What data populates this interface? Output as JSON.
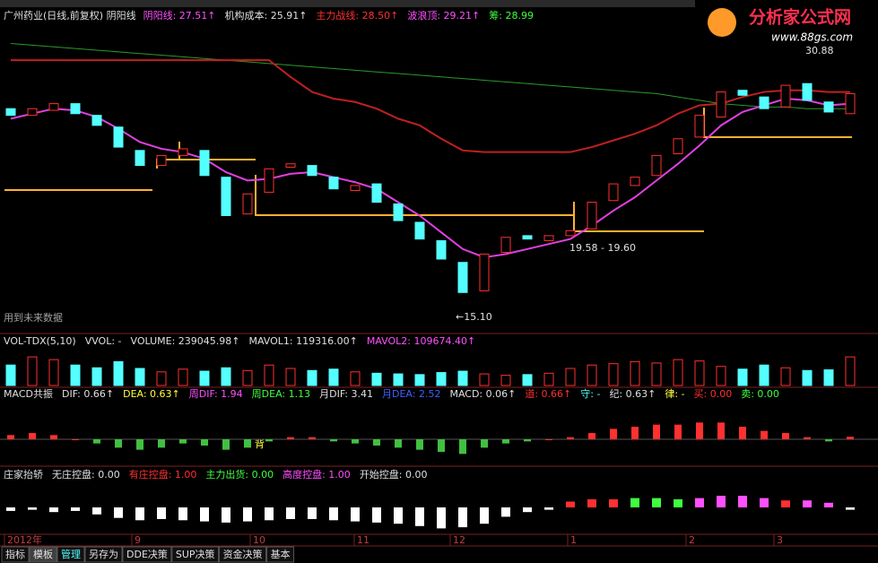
{
  "logo": {
    "name": "分析家公式网",
    "url": "www.88gs.com"
  },
  "price_panel": {
    "title": "广州药业(日线,前复权) 阴阳线",
    "legend": [
      {
        "label": "阴阳线: 27.51↑",
        "color": "#ff50ff"
      },
      {
        "label": "机构成本: 25.91↑",
        "color": "#e0e0e0"
      },
      {
        "label": "主力战线: 28.50↑",
        "color": "#ff3030"
      },
      {
        "label": "波浪顶: 29.21↑",
        "color": "#ff50ff"
      },
      {
        "label": "筹: 28.99",
        "color": "#40ff40"
      }
    ],
    "ylim": [
      14.2,
      32.6
    ],
    "opens": [
      27.6,
      27.2,
      27.5,
      27.9,
      27.2,
      26.5,
      25.1,
      24.2,
      24.8,
      25.1,
      23.5,
      21.3,
      22.6,
      24.1,
      24.2,
      23.5,
      22.7,
      23.1,
      21.9,
      20.8,
      19.7,
      18.4,
      16.7,
      19.0,
      20.0,
      19.7,
      20.0,
      20.4,
      22.1,
      23.0,
      23.6,
      24.9,
      25.9,
      27.1,
      28.7,
      28.3,
      27.7,
      29.1,
      28.0,
      27.3
    ],
    "closes": [
      27.2,
      27.6,
      27.9,
      27.3,
      26.6,
      25.3,
      24.2,
      24.8,
      25.2,
      23.6,
      21.2,
      22.5,
      24.0,
      24.3,
      23.6,
      22.8,
      23.0,
      22.0,
      20.9,
      19.8,
      18.6,
      16.6,
      18.9,
      19.9,
      19.8,
      20.0,
      20.3,
      22.0,
      23.1,
      23.5,
      24.8,
      25.8,
      27.2,
      28.6,
      28.4,
      27.6,
      29.0,
      28.1,
      27.4,
      28.5
    ],
    "ma_magenta": [
      27.0,
      27.3,
      27.6,
      27.5,
      27.1,
      26.4,
      25.6,
      25.2,
      25.0,
      24.6,
      23.8,
      23.3,
      23.4,
      23.7,
      23.8,
      23.5,
      23.2,
      22.8,
      22.0,
      21.2,
      20.2,
      19.2,
      18.7,
      18.9,
      19.2,
      19.5,
      19.8,
      20.6,
      21.5,
      22.3,
      23.3,
      24.3,
      25.4,
      26.6,
      27.4,
      27.8,
      28.2,
      28.1,
      27.8,
      27.9
    ],
    "ma_red": [
      30.5,
      30.5,
      30.5,
      30.5,
      30.5,
      30.5,
      30.5,
      30.5,
      30.5,
      30.5,
      30.5,
      30.5,
      30.5,
      29.5,
      28.6,
      28.2,
      28.0,
      27.6,
      27.0,
      26.6,
      25.8,
      25.1,
      25.0,
      25.0,
      25.0,
      25.0,
      25.0,
      25.3,
      25.7,
      26.1,
      26.6,
      27.3,
      27.8,
      27.9,
      28.3,
      28.6,
      28.7,
      28.7,
      28.6,
      28.6
    ],
    "ma_green": [
      31.5,
      31.4,
      31.3,
      31.2,
      31.1,
      31.0,
      30.9,
      30.8,
      30.7,
      30.6,
      30.5,
      30.4,
      30.3,
      30.2,
      30.1,
      30.0,
      29.9,
      29.8,
      29.7,
      29.6,
      29.5,
      29.4,
      29.3,
      29.2,
      29.1,
      29.0,
      28.9,
      28.8,
      28.7,
      28.6,
      28.5,
      28.3,
      28.1,
      27.9,
      27.8,
      27.7,
      27.7,
      27.6,
      27.6,
      27.6
    ],
    "annotations": {
      "low": "←15.10",
      "range": "19.58 - 19.60",
      "high": "30.88",
      "future": "用到未来数据"
    }
  },
  "volume_panel": {
    "legend": [
      {
        "label": "VOL-TDX(5,10)",
        "color": "#e0e0e0"
      },
      {
        "label": "VVOL: -",
        "color": "#e0e0e0"
      },
      {
        "label": "VOLUME: 239045.98↑",
        "color": "#e0e0e0"
      },
      {
        "label": "MAVOL1: 119316.00↑",
        "color": "#e0e0e0"
      },
      {
        "label": "MAVOL2: 109674.40↑",
        "color": "#ff50ff"
      }
    ],
    "ylim": [
      0,
      500000
    ],
    "values": [
      300000,
      420000,
      380000,
      300000,
      260000,
      350000,
      250000,
      200000,
      240000,
      210000,
      260000,
      220000,
      300000,
      250000,
      220000,
      240000,
      200000,
      180000,
      170000,
      160000,
      190000,
      210000,
      170000,
      150000,
      160000,
      180000,
      250000,
      300000,
      320000,
      350000,
      330000,
      380000,
      360000,
      280000,
      240000,
      300000,
      260000,
      220000,
      230000,
      420000
    ]
  },
  "macd_panel": {
    "legend": [
      {
        "label": "MACD共振",
        "color": "#e0e0e0"
      },
      {
        "label": "DIF: 0.66↑",
        "color": "#e0e0e0"
      },
      {
        "label": "DEA: 0.63↑",
        "color": "#ffff40"
      },
      {
        "label": "周DIF: 1.94",
        "color": "#ff50ff"
      },
      {
        "label": "周DEA: 1.13",
        "color": "#40ff40"
      },
      {
        "label": "月DIF: 3.41",
        "color": "#e0e0e0"
      },
      {
        "label": "月DEA: 2.52",
        "color": "#4060ff"
      },
      {
        "label": "MACD: 0.06↑",
        "color": "#e0e0e0"
      },
      {
        "label": "道: 0.66↑",
        "color": "#ff3030"
      },
      {
        "label": "守: -",
        "color": "#54ffff"
      },
      {
        "label": "纪: 0.63↑",
        "color": "#e0e0e0"
      },
      {
        "label": "律: -",
        "color": "#ffff40"
      },
      {
        "label": "买: 0.00",
        "color": "#ff3030"
      },
      {
        "label": "卖: 0.00",
        "color": "#40ff40"
      }
    ],
    "ylim": [
      -0.6,
      0.6
    ],
    "values": [
      0.1,
      0.15,
      0.1,
      0,
      -0.1,
      -0.2,
      -0.25,
      -0.2,
      -0.1,
      -0.15,
      -0.25,
      -0.2,
      -0.05,
      0.05,
      0.05,
      -0.05,
      -0.1,
      -0.15,
      -0.2,
      -0.25,
      -0.3,
      -0.35,
      -0.2,
      -0.1,
      -0.05,
      0,
      0.05,
      0.15,
      0.25,
      0.3,
      0.35,
      0.35,
      0.4,
      0.4,
      0.3,
      0.2,
      0.15,
      0.05,
      -0.05,
      0.06
    ],
    "marker": "背"
  },
  "control_panel": {
    "legend": [
      {
        "label": "庄家抬轿",
        "color": "#e0e0e0"
      },
      {
        "label": "无庄控盘: 0.00",
        "color": "#e0e0e0"
      },
      {
        "label": "有庄控盘: 1.00",
        "color": "#ff3030"
      },
      {
        "label": "主力出货: 0.00",
        "color": "#40ff40"
      },
      {
        "label": "高度控盘: 1.00",
        "color": "#ff50ff"
      },
      {
        "label": "开始控盘: 0.00",
        "color": "#e0e0e0"
      }
    ],
    "ylim": [
      -1,
      1
    ],
    "values": [
      -0.15,
      -0.1,
      -0.2,
      -0.15,
      -0.3,
      -0.45,
      -0.55,
      -0.5,
      -0.55,
      -0.6,
      -0.65,
      -0.6,
      -0.55,
      -0.5,
      -0.5,
      -0.55,
      -0.6,
      -0.65,
      -0.7,
      -0.8,
      -0.9,
      -0.85,
      -0.7,
      -0.4,
      -0.2,
      -0.1,
      0.25,
      0.35,
      0.35,
      0.4,
      0.4,
      0.35,
      0.4,
      0.5,
      0.5,
      0.4,
      0.3,
      0.3,
      0.2,
      -0.1
    ],
    "bar_colors": [
      "#ffffff",
      "#ffffff",
      "#ffffff",
      "#ffffff",
      "#ffffff",
      "#ffffff",
      "#ffffff",
      "#ffffff",
      "#ffffff",
      "#ffffff",
      "#ffffff",
      "#ffffff",
      "#ffffff",
      "#ffffff",
      "#ffffff",
      "#ffffff",
      "#ffffff",
      "#ffffff",
      "#ffffff",
      "#ffffff",
      "#ffffff",
      "#ffffff",
      "#ffffff",
      "#ffffff",
      "#ffffff",
      "#ffffff",
      "#ff3030",
      "#ff3030",
      "#ff3030",
      "#40ff40",
      "#40ff40",
      "#40ff40",
      "#ff50ff",
      "#ff50ff",
      "#ff50ff",
      "#ff50ff",
      "#ff3030",
      "#ff50ff",
      "#ff50ff",
      "#ffffff"
    ]
  },
  "x_axis": [
    "2012年",
    "9",
    "10",
    "11",
    "12",
    "1",
    "2",
    "3"
  ],
  "tabs": [
    "指标",
    "模板",
    "管理",
    "另存为",
    "DDE决策",
    "SUP决策",
    "资金决策",
    "基本"
  ]
}
